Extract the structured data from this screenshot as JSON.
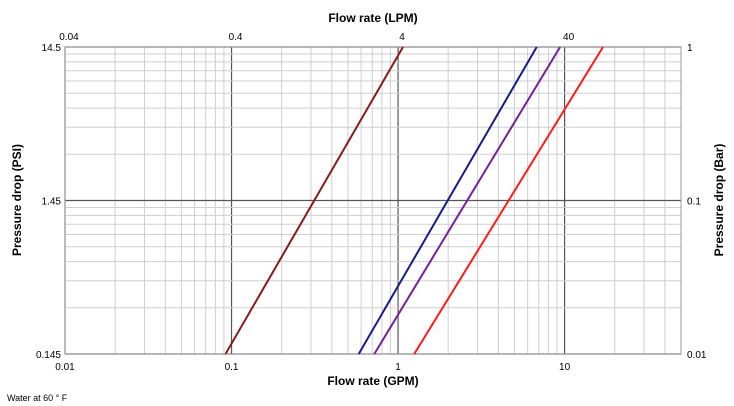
{
  "chart_data": {
    "type": "line",
    "scale": {
      "x": "log",
      "y": "log"
    },
    "grid": true,
    "x_bottom": {
      "label": "Flow rate (GPM)",
      "range": [
        0.01,
        50
      ],
      "ticks": [
        {
          "value": 0.01,
          "label": "0.01"
        },
        {
          "value": 0.1,
          "label": "0.1"
        },
        {
          "value": 1,
          "label": "1"
        },
        {
          "value": 10,
          "label": "10"
        }
      ]
    },
    "x_top": {
      "label": "Flow rate (LPM)",
      "ticks": [
        {
          "value": 0.04,
          "label": "0.04"
        },
        {
          "value": 0.4,
          "label": "0.4"
        },
        {
          "value": 4,
          "label": "4"
        },
        {
          "value": 40,
          "label": "40"
        }
      ]
    },
    "y_left": {
      "label": "Pressure drop (PSI)",
      "range": [
        0.145,
        14.5
      ],
      "ticks": [
        {
          "value": 0.145,
          "label": "0.145"
        },
        {
          "value": 1.45,
          "label": "1.45"
        },
        {
          "value": 14.5,
          "label": "14.5"
        }
      ]
    },
    "y_right": {
      "label": "Pressure drop (Bar)",
      "ticks": [
        {
          "value": 0.01,
          "label": "0.01"
        },
        {
          "value": 0.1,
          "label": "0.1"
        },
        {
          "value": 1,
          "label": "1"
        }
      ]
    },
    "series": [
      {
        "color": "#8b1a1a",
        "points": [
          [
            0.092,
            0.145
          ],
          [
            1.07,
            14.5
          ]
        ]
      },
      {
        "color": "#1a1a8c",
        "points": [
          [
            0.58,
            0.145
          ],
          [
            6.8,
            14.5
          ]
        ]
      },
      {
        "color": "#7a1f9a",
        "points": [
          [
            0.72,
            0.145
          ],
          [
            9.4,
            14.5
          ]
        ]
      },
      {
        "color": "#ff1a1a",
        "points": [
          [
            1.25,
            0.145
          ],
          [
            17.0,
            14.5
          ]
        ]
      }
    ],
    "note": "Water at 60 ° F"
  }
}
